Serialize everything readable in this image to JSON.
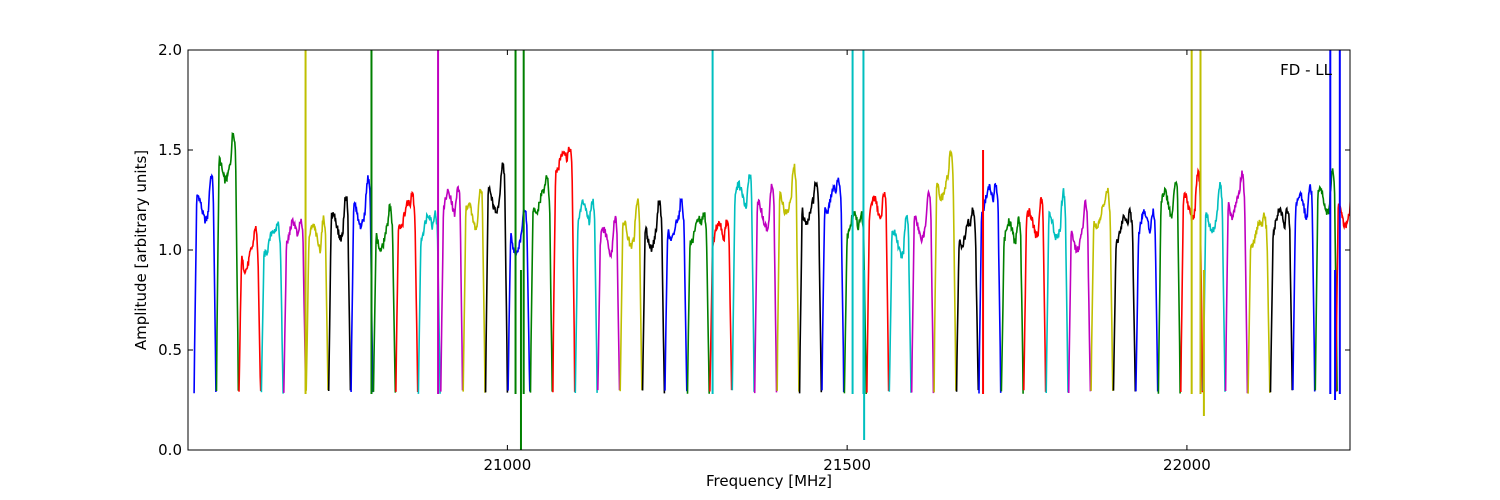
{
  "chart_data": {
    "type": "line",
    "annotation": "FD - LL",
    "xlabel": "Frequency [MHz]",
    "ylabel": "Amplitude [arbitrary units]",
    "xlim": [
      20530,
      22240
    ],
    "ylim": [
      0.0,
      2.0
    ],
    "xticks": [
      21000,
      21500,
      22000
    ],
    "xtick_labels": [
      "21000",
      "21500",
      "22000"
    ],
    "yticks": [
      0.0,
      0.5,
      1.0,
      1.5,
      2.0
    ],
    "ytick_labels": [
      "0.0",
      "0.5",
      "1.0",
      "1.5",
      "2.0"
    ],
    "grid": false,
    "legend": "none",
    "band_width_mhz": 32,
    "band_color_cycle": [
      "#0000ff",
      "#008000",
      "#ff0000",
      "#00bfbf",
      "#bf00bf",
      "#bfbf00",
      "#000000"
    ],
    "start_band_color_index": 0,
    "band_centers": [
      20555,
      20588,
      20621,
      20654,
      20687,
      20720,
      20753,
      20786,
      20819,
      20852,
      20885,
      20918,
      20951,
      20984,
      21017,
      21050,
      21083,
      21116,
      21149,
      21182,
      21215,
      21248,
      21281,
      21314,
      21347,
      21380,
      21413,
      21446,
      21479,
      21512,
      21545,
      21578,
      21611,
      21644,
      21677,
      21710,
      21743,
      21776,
      21809,
      21842,
      21875,
      21908,
      21941,
      21974,
      22007,
      22040,
      22073,
      22106,
      22139,
      22172,
      22205,
      22235
    ],
    "band_peaks": [
      1.39,
      1.59,
      1.14,
      1.22,
      1.26,
      1.24,
      1.3,
      1.36,
      1.24,
      1.36,
      1.3,
      1.41,
      1.35,
      1.43,
      1.22,
      1.42,
      1.62,
      1.36,
      1.22,
      1.26,
      1.25,
      1.29,
      1.28,
      1.26,
      1.45,
      1.35,
      1.42,
      1.37,
      1.43,
      1.3,
      1.38,
      1.21,
      1.3,
      1.5,
      1.26,
      1.43,
      1.26,
      1.31,
      1.3,
      1.24,
      1.35,
      1.29,
      1.31,
      1.41,
      1.4,
      1.33,
      1.41,
      1.26,
      1.32,
      1.4,
      1.43,
      1.36
    ],
    "spikes": [
      {
        "x": 20703,
        "color": "#bfbf00",
        "y": 2.0
      },
      {
        "x": 20800,
        "color": "#008000",
        "y": 2.0
      },
      {
        "x": 20898,
        "color": "#bf00bf",
        "y": 2.0
      },
      {
        "x": 21012,
        "color": "#008000",
        "y": 2.0
      },
      {
        "x": 21024,
        "color": "#008000",
        "y": 2.0
      },
      {
        "x": 21302,
        "color": "#00bfbf",
        "y": 2.0
      },
      {
        "x": 21508,
        "color": "#00bfbf",
        "y": 2.0
      },
      {
        "x": 21524,
        "color": "#00bfbf",
        "y": 2.0
      },
      {
        "x": 22007,
        "color": "#bfbf00",
        "y": 2.0
      },
      {
        "x": 22020,
        "color": "#bfbf00",
        "y": 2.0
      },
      {
        "x": 22211,
        "color": "#0000ff",
        "y": 2.0
      },
      {
        "x": 22225,
        "color": "#0000ff",
        "y": 2.0
      },
      {
        "x": 21700,
        "color": "#ff0000",
        "y": 1.5
      }
    ],
    "dips": [
      {
        "x": 21020,
        "color": "#008000",
        "y": 0.0
      },
      {
        "x": 21525,
        "color": "#00bfbf",
        "y": 0.05
      },
      {
        "x": 22025,
        "color": "#bfbf00",
        "y": 0.17
      },
      {
        "x": 22218,
        "color": "#0000ff",
        "y": 0.25
      }
    ]
  }
}
